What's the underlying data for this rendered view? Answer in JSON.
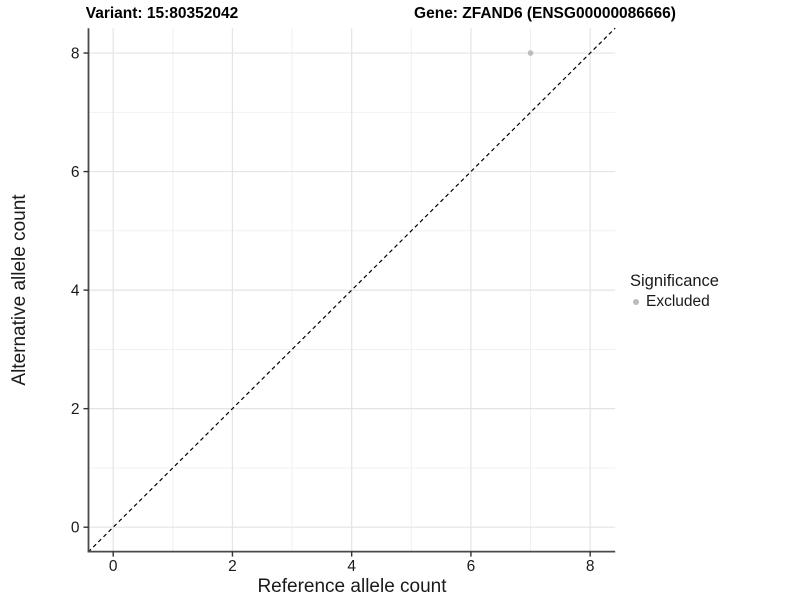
{
  "titles": {
    "variant": "Variant: 15:80352042",
    "gene": "Gene: ZFAND6 (ENSG00000086666)"
  },
  "chart_data": {
    "type": "scatter",
    "xlabel": "Reference allele count",
    "ylabel": "Alternative allele count",
    "x_ticks": [
      0,
      2,
      4,
      6,
      8
    ],
    "y_ticks": [
      0,
      2,
      4,
      6,
      8
    ],
    "x_minor_ticks": [
      1,
      3,
      5,
      7
    ],
    "y_minor_ticks": [
      1,
      3,
      5,
      7
    ],
    "xlim": [
      -0.42,
      8.42
    ],
    "ylim": [
      -0.42,
      8.42
    ],
    "grid": true,
    "points": [
      {
        "x": 7,
        "y": 8,
        "series": "Excluded"
      }
    ],
    "reference_line": {
      "slope": 1,
      "intercept": 0,
      "style": "dashed",
      "color": "#000000"
    },
    "legend": {
      "title": "Significance",
      "position": "right",
      "entries": [
        {
          "label": "Excluded",
          "color": "#bcbcbc",
          "marker": "circle"
        }
      ]
    },
    "colors": {
      "point": "#bcbcbc",
      "grid_major": "#e4e4e4",
      "grid_minor": "#efefef",
      "axis_line": "#4a4a4a",
      "tick_mark": "#333333",
      "tick_label": "#1a1a1a"
    }
  }
}
